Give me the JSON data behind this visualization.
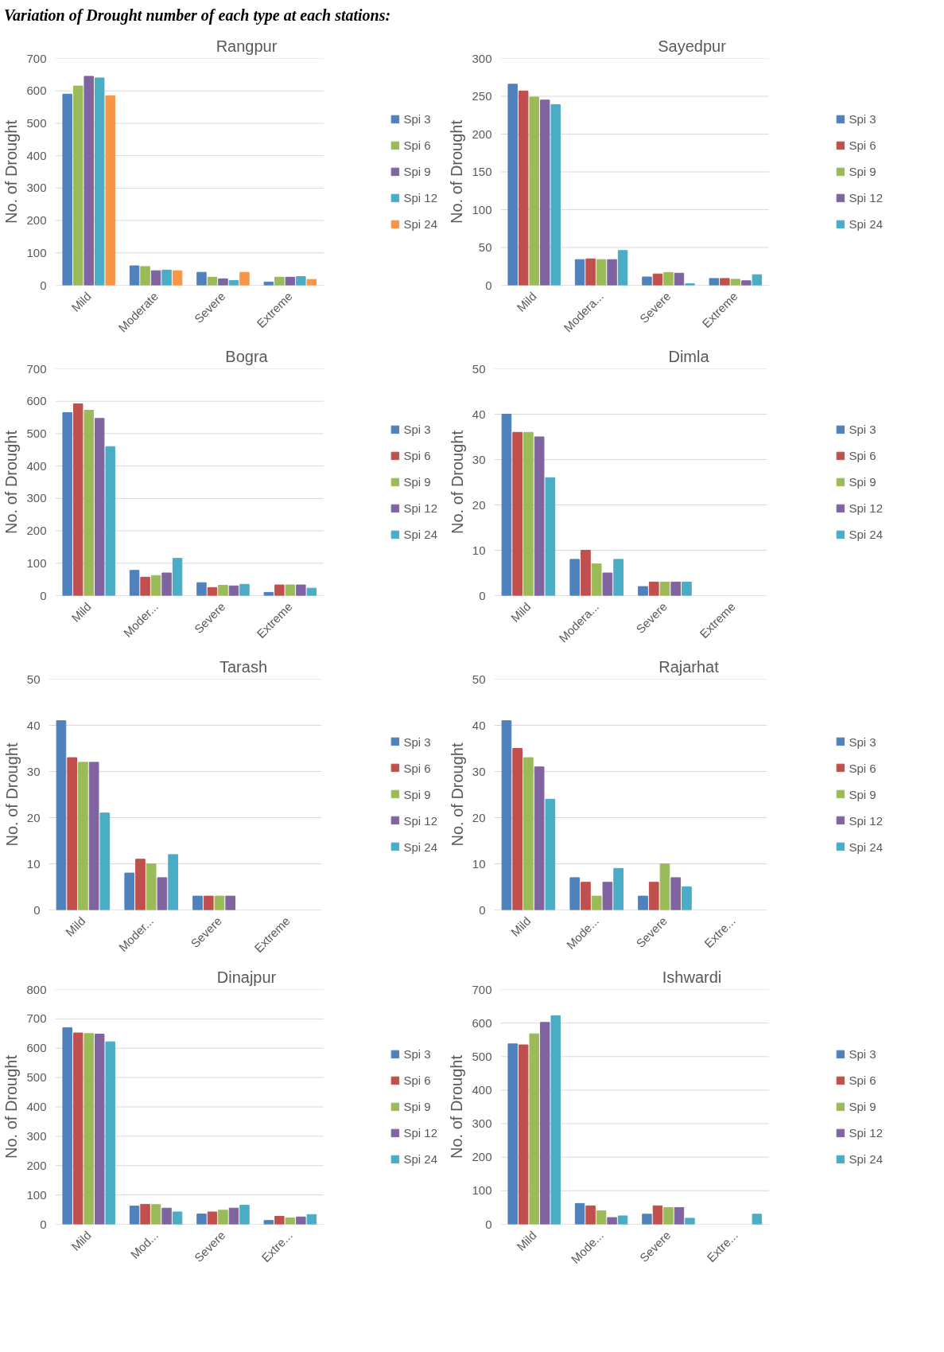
{
  "chart_data": [
    {
      "type": "bar",
      "title": "Rangpur",
      "ylabel": "No. of Drought",
      "annotations": [
        "Variation of Drought number of each type at each stations:"
      ],
      "categories": [
        "Mild",
        "Moderate",
        "Severe",
        "Extreme"
      ],
      "ylim": [
        0,
        700
      ],
      "yticks": [
        0,
        100,
        200,
        300,
        400,
        500,
        600,
        700
      ],
      "grid": "y",
      "legend": "right",
      "series": [
        {
          "name": "Spi 3",
          "color": "#4f81bd",
          "values": [
            590,
            60,
            40,
            10
          ]
        },
        {
          "name": "Spi 6",
          "color": "#9bbb59",
          "values": [
            615,
            58,
            25,
            25
          ]
        },
        {
          "name": "Spi 9",
          "color": "#8064a2",
          "values": [
            645,
            45,
            20,
            25
          ]
        },
        {
          "name": "Spi 12",
          "color": "#4bacc6",
          "values": [
            640,
            47,
            15,
            27
          ]
        },
        {
          "name": "Spi 24",
          "color": "#f79646",
          "values": [
            585,
            45,
            40,
            18
          ]
        }
      ]
    },
    {
      "type": "bar",
      "title": "Sayedpur",
      "ylabel": "No. of Drought",
      "categories": [
        "Mild",
        "Modera...",
        "Severe",
        "Extreme"
      ],
      "ylim": [
        0,
        300
      ],
      "yticks": [
        0,
        50,
        100,
        150,
        200,
        250,
        300
      ],
      "grid": "y",
      "legend": "right",
      "series": [
        {
          "name": "Spi 3",
          "color": "#4f81bd",
          "values": [
            266,
            34,
            11,
            9
          ]
        },
        {
          "name": "Spi 6",
          "color": "#c0504d",
          "values": [
            257,
            35,
            15,
            9
          ]
        },
        {
          "name": "Spi 9",
          "color": "#9bbb59",
          "values": [
            249,
            34,
            17,
            8
          ]
        },
        {
          "name": "Spi 12",
          "color": "#8064a2",
          "values": [
            245,
            34,
            16,
            6
          ]
        },
        {
          "name": "Spi 24",
          "color": "#4bacc6",
          "values": [
            239,
            46,
            2,
            14
          ]
        }
      ]
    },
    {
      "type": "bar",
      "title": "Bogra",
      "ylabel": "No. of Drought",
      "categories": [
        "Mild",
        "Moder...",
        "Severe",
        "Extreme"
      ],
      "ylim": [
        0,
        700
      ],
      "yticks": [
        0,
        100,
        200,
        300,
        400,
        500,
        600,
        700
      ],
      "grid": "y",
      "legend": "right",
      "series": [
        {
          "name": "Spi 3",
          "color": "#4f81bd",
          "values": [
            565,
            78,
            40,
            10
          ]
        },
        {
          "name": "Spi 6",
          "color": "#c0504d",
          "values": [
            592,
            57,
            25,
            33
          ]
        },
        {
          "name": "Spi 9",
          "color": "#9bbb59",
          "values": [
            572,
            62,
            32,
            33
          ]
        },
        {
          "name": "Spi 12",
          "color": "#8064a2",
          "values": [
            547,
            70,
            30,
            33
          ]
        },
        {
          "name": "Spi 24",
          "color": "#4bacc6",
          "values": [
            460,
            115,
            35,
            23
          ]
        }
      ]
    },
    {
      "type": "bar",
      "title": "Dimla",
      "ylabel": "No. of Drought",
      "categories": [
        "Mild",
        "Modera...",
        "Severe",
        "Extreme"
      ],
      "ylim": [
        0,
        50
      ],
      "yticks": [
        0,
        10,
        20,
        30,
        40,
        50
      ],
      "grid": "y",
      "legend": "right",
      "series": [
        {
          "name": "Spi 3",
          "color": "#4f81bd",
          "values": [
            40,
            8,
            2,
            null
          ]
        },
        {
          "name": "Spi 6",
          "color": "#c0504d",
          "values": [
            36,
            10,
            3,
            null
          ]
        },
        {
          "name": "Spi 9",
          "color": "#9bbb59",
          "values": [
            36,
            7,
            3,
            null
          ]
        },
        {
          "name": "Spi 12",
          "color": "#8064a2",
          "values": [
            35,
            5,
            3,
            null
          ]
        },
        {
          "name": "Spi 24",
          "color": "#4bacc6",
          "values": [
            26,
            8,
            3,
            null
          ]
        }
      ]
    },
    {
      "type": "bar",
      "title": "Tarash",
      "ylabel": "No. of Drought",
      "categories": [
        "Mild",
        "Moder...",
        "Severe",
        "Extreme"
      ],
      "ylim": [
        0,
        50
      ],
      "yticks": [
        0,
        10,
        20,
        30,
        40,
        50
      ],
      "grid": "y",
      "legend": "right",
      "series": [
        {
          "name": "Spi 3",
          "color": "#4f81bd",
          "values": [
            41,
            8,
            3,
            null
          ]
        },
        {
          "name": "Spi 6",
          "color": "#c0504d",
          "values": [
            33,
            11,
            3,
            null
          ]
        },
        {
          "name": "Spi 9",
          "color": "#9bbb59",
          "values": [
            32,
            10,
            3,
            null
          ]
        },
        {
          "name": "Spi 12",
          "color": "#8064a2",
          "values": [
            32,
            7,
            3,
            null
          ]
        },
        {
          "name": "Spi 24",
          "color": "#4bacc6",
          "values": [
            21,
            12,
            null,
            null
          ]
        }
      ]
    },
    {
      "type": "bar",
      "title": "Rajarhat",
      "ylabel": "No. of Drought",
      "categories": [
        "Mild",
        "Mode...",
        "Severe",
        "Extre..."
      ],
      "ylim": [
        0,
        50
      ],
      "yticks": [
        0,
        10,
        20,
        30,
        40,
        50
      ],
      "grid": "y",
      "legend": "right",
      "series": [
        {
          "name": "Spi 3",
          "color": "#4f81bd",
          "values": [
            41,
            7,
            3,
            null
          ]
        },
        {
          "name": "Spi 6",
          "color": "#c0504d",
          "values": [
            35,
            6,
            6,
            null
          ]
        },
        {
          "name": "Spi 9",
          "color": "#9bbb59",
          "values": [
            33,
            3,
            10,
            null
          ]
        },
        {
          "name": "Spi 12",
          "color": "#8064a2",
          "values": [
            31,
            6,
            7,
            null
          ]
        },
        {
          "name": "Spi 24",
          "color": "#4bacc6",
          "values": [
            24,
            9,
            5,
            null
          ]
        }
      ]
    },
    {
      "type": "bar",
      "title": "Dinajpur",
      "ylabel": "No. of Drought",
      "categories": [
        "Mild",
        "Mod...",
        "Severe",
        "Extre..."
      ],
      "ylim": [
        0,
        800
      ],
      "yticks": [
        0,
        100,
        200,
        300,
        400,
        500,
        600,
        700,
        800
      ],
      "grid": "y",
      "legend": "right",
      "series": [
        {
          "name": "Spi 3",
          "color": "#4f81bd",
          "values": [
            670,
            62,
            35,
            13
          ]
        },
        {
          "name": "Spi 6",
          "color": "#c0504d",
          "values": [
            652,
            68,
            42,
            27
          ]
        },
        {
          "name": "Spi 9",
          "color": "#9bbb59",
          "values": [
            650,
            67,
            48,
            22
          ]
        },
        {
          "name": "Spi 12",
          "color": "#8064a2",
          "values": [
            648,
            55,
            55,
            25
          ]
        },
        {
          "name": "Spi 24",
          "color": "#4bacc6",
          "values": [
            622,
            42,
            65,
            33
          ]
        }
      ]
    },
    {
      "type": "bar",
      "title": "Ishwardi",
      "ylabel": "No. of Drought",
      "categories": [
        "Mild",
        "Mode...",
        "Severe",
        "Extre..."
      ],
      "ylim": [
        0,
        700
      ],
      "yticks": [
        0,
        100,
        200,
        300,
        400,
        500,
        600,
        700
      ],
      "grid": "y",
      "legend": "right",
      "series": [
        {
          "name": "Spi 3",
          "color": "#4f81bd",
          "values": [
            538,
            62,
            30,
            null
          ]
        },
        {
          "name": "Spi 6",
          "color": "#c0504d",
          "values": [
            535,
            55,
            55,
            null
          ]
        },
        {
          "name": "Spi 9",
          "color": "#9bbb59",
          "values": [
            568,
            40,
            50,
            null
          ]
        },
        {
          "name": "Spi 12",
          "color": "#8064a2",
          "values": [
            602,
            20,
            50,
            null
          ]
        },
        {
          "name": "Spi 24",
          "color": "#4bacc6",
          "values": [
            622,
            25,
            18,
            30
          ]
        }
      ]
    }
  ]
}
